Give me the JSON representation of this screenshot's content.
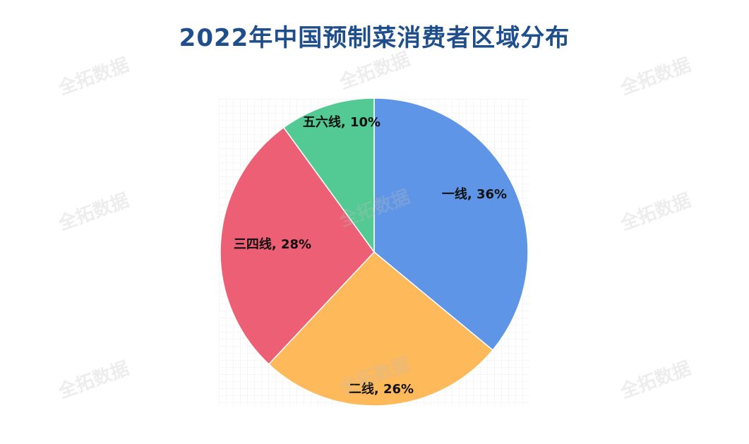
{
  "chart_data": {
    "type": "pie",
    "title": "2022年中国预制菜消费者区域分布",
    "slices": [
      {
        "label": "一线, 36%",
        "value": 36,
        "color": "#5e95e6"
      },
      {
        "label": "二线, 26%",
        "value": 26,
        "color": "#fdb95a"
      },
      {
        "label": "三四线, 28%",
        "value": 28,
        "color": "#ec5f74"
      },
      {
        "label": "五六线, 10%",
        "value": 10,
        "color": "#53c993"
      }
    ]
  },
  "watermark": "全拓数据"
}
